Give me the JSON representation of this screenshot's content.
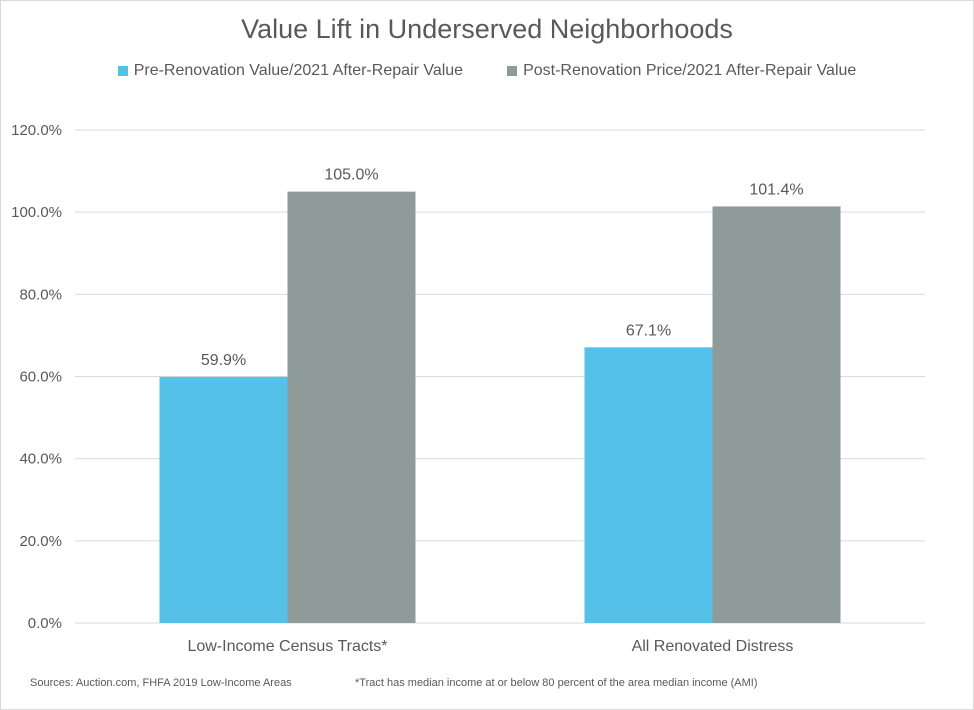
{
  "chart_data": {
    "type": "bar",
    "title": "Value Lift in Underserved Neighborhoods",
    "categories": [
      "Low-Income Census Tracts*",
      "All Renovated Distress"
    ],
    "series": [
      {
        "name": "Pre-Renovation Value/2021 After-Repair Value",
        "color": "#56c1e8",
        "values": [
          59.9,
          67.1
        ],
        "labels": [
          "59.9%",
          "67.1%"
        ]
      },
      {
        "name": "Post-Renovation Price/2021 After-Repair Value",
        "color": "#8f9b98",
        "values": [
          105.0,
          101.4
        ],
        "labels": [
          "105.0%",
          "101.4%"
        ]
      }
    ],
    "ylim": [
      0,
      120
    ],
    "ytick_values": [
      0,
      20,
      40,
      60,
      80,
      100,
      120
    ],
    "ytick_labels": [
      "0.0%",
      "20.0%",
      "40.0%",
      "60.0%",
      "80.0%",
      "100.0%",
      "120.0%"
    ],
    "grid": true,
    "legend_position": "top-center",
    "xlabel": "",
    "ylabel": ""
  },
  "footer": {
    "sources": "Sources: Auction.com, FHFA 2019 Low-Income Areas",
    "note": "*Tract has median income at or below 80 percent of the area median income (AMI)"
  }
}
